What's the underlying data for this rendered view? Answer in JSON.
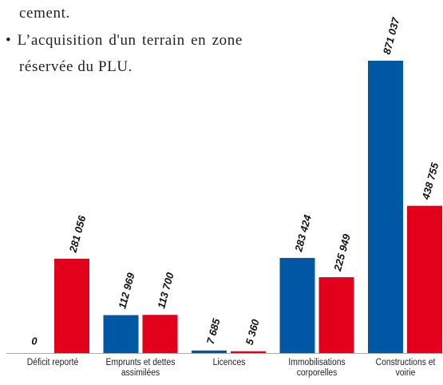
{
  "text": {
    "lines": [
      "cement.",
      "• L’acquisition d'un terrain en zone",
      "réservée du PLU."
    ]
  },
  "chart_data": {
    "type": "bar",
    "categories": [
      "Déficit reporté",
      "Emprunts et dettes assimilées",
      "Licences",
      "Immobilisations corporelles",
      "Constructions et voirie"
    ],
    "series": [
      {
        "color": "#0057a3",
        "values": [
          0,
          112969,
          7685,
          283424,
          871037
        ],
        "value_labels": [
          "0",
          "112 969",
          "7 685",
          "283 424",
          "871 037"
        ]
      },
      {
        "color": "#e2001a",
        "values": [
          281056,
          113700,
          5360,
          225949,
          438755
        ],
        "value_labels": [
          "281 056",
          "113 700",
          "5 360",
          "225 949",
          "438 755"
        ]
      }
    ]
  }
}
